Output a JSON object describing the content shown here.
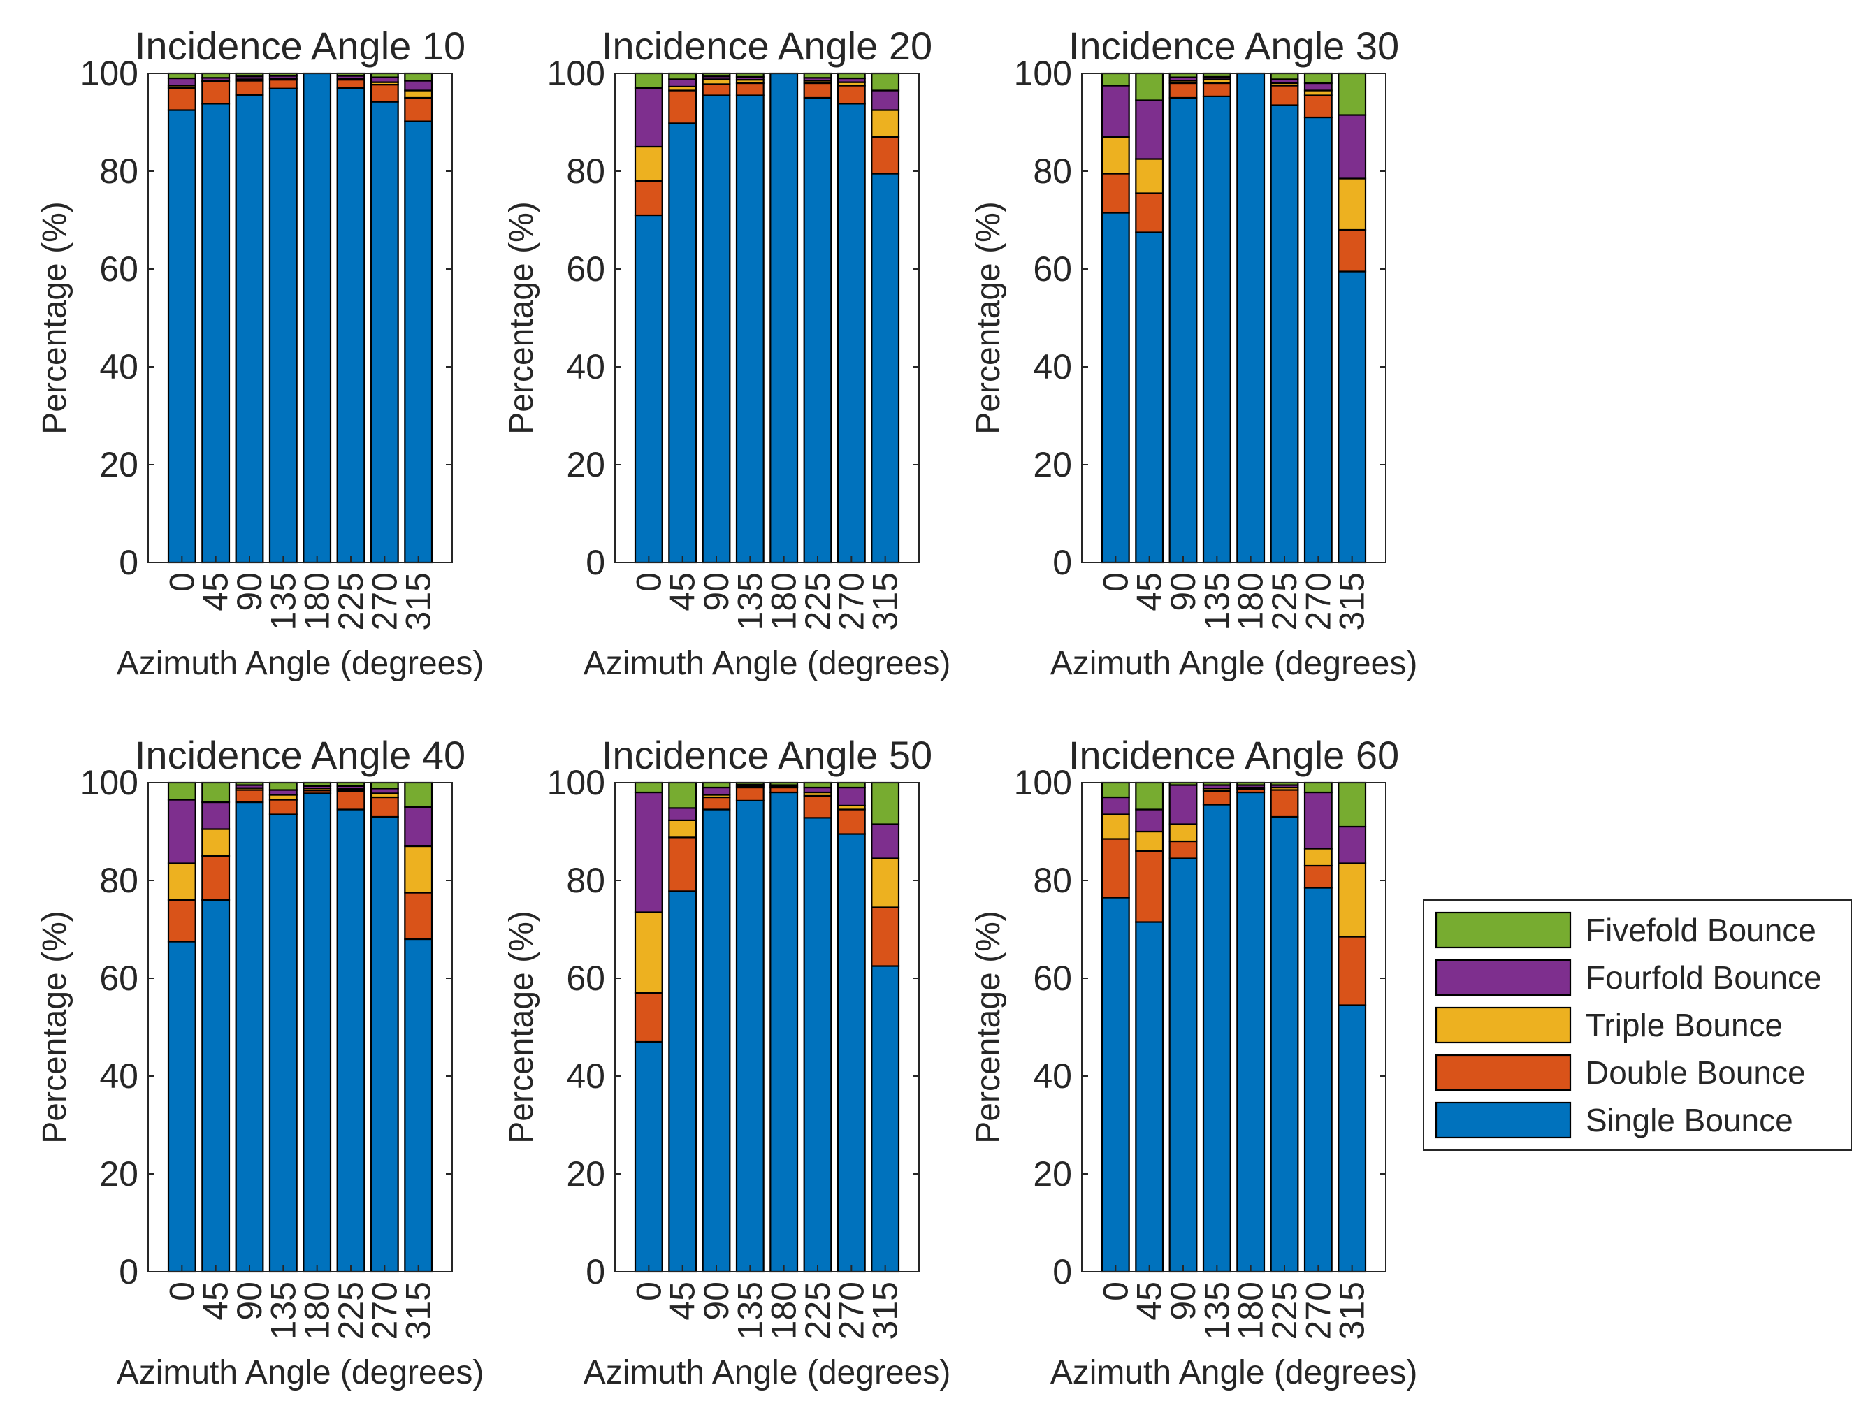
{
  "chart_data": [
    {
      "type": "bar",
      "stacked": true,
      "title": "Incidence Angle 10",
      "xlabel": "Azimuth Angle (degrees)",
      "ylabel": "Percentage (%)",
      "ylim": [
        0,
        100
      ],
      "yticks": [
        "0",
        "20",
        "40",
        "60",
        "80",
        "100"
      ],
      "categories": [
        "0",
        "45",
        "90",
        "135",
        "180",
        "225",
        "270",
        "315"
      ],
      "series": [
        {
          "name": "Single Bounce",
          "values": [
            92.5,
            93.8,
            95.6,
            96.9,
            100,
            97.0,
            94.2,
            90.2
          ]
        },
        {
          "name": "Double Bounce",
          "values": [
            4.5,
            4.5,
            2.9,
            1.8,
            0,
            1.7,
            3.5,
            4.8
          ]
        },
        {
          "name": "Triple Bounce",
          "values": [
            0.5,
            0.2,
            0.3,
            0.3,
            0,
            0.2,
            0.5,
            1.5
          ]
        },
        {
          "name": "Fourfold Bounce",
          "values": [
            1.5,
            0.6,
            0.6,
            0.5,
            0,
            0.6,
            1.0,
            2.0
          ]
        },
        {
          "name": "Fivefold Bounce",
          "values": [
            1.0,
            0.9,
            0.6,
            0.5,
            0,
            0.5,
            0.8,
            1.5
          ]
        }
      ]
    },
    {
      "type": "bar",
      "stacked": true,
      "title": "Incidence Angle 20",
      "xlabel": "Azimuth Angle (degrees)",
      "ylabel": "Percentage (%)",
      "ylim": [
        0,
        100
      ],
      "yticks": [
        "0",
        "20",
        "40",
        "60",
        "80",
        "100"
      ],
      "categories": [
        "0",
        "45",
        "90",
        "135",
        "180",
        "225",
        "270",
        "315"
      ],
      "series": [
        {
          "name": "Single Bounce",
          "values": [
            71.0,
            89.8,
            95.5,
            95.5,
            100,
            95.0,
            93.8,
            79.5
          ]
        },
        {
          "name": "Double Bounce",
          "values": [
            7.0,
            6.7,
            2.3,
            2.5,
            0,
            3.0,
            3.7,
            7.5
          ]
        },
        {
          "name": "Triple Bounce",
          "values": [
            7.0,
            0.8,
            1.0,
            0.7,
            0,
            0.5,
            0.7,
            5.5
          ]
        },
        {
          "name": "Fourfold Bounce",
          "values": [
            12.0,
            1.5,
            0.6,
            0.6,
            0,
            0.6,
            0.8,
            4.0
          ]
        },
        {
          "name": "Fivefold Bounce",
          "values": [
            3.0,
            1.2,
            0.6,
            0.7,
            0,
            0.9,
            1.0,
            3.5
          ]
        }
      ]
    },
    {
      "type": "bar",
      "stacked": true,
      "title": "Incidence Angle 30",
      "xlabel": "Azimuth Angle (degrees)",
      "ylabel": "Percentage (%)",
      "ylim": [
        0,
        100
      ],
      "yticks": [
        "0",
        "20",
        "40",
        "60",
        "80",
        "100"
      ],
      "categories": [
        "0",
        "45",
        "90",
        "135",
        "180",
        "225",
        "270",
        "315"
      ],
      "series": [
        {
          "name": "Single Bounce",
          "values": [
            71.5,
            67.5,
            95.0,
            95.3,
            100,
            93.5,
            91.0,
            59.5
          ]
        },
        {
          "name": "Double Bounce",
          "values": [
            8.0,
            8.0,
            3.0,
            2.7,
            0,
            4.0,
            4.5,
            8.5
          ]
        },
        {
          "name": "Triple Bounce",
          "values": [
            7.5,
            7.0,
            0.5,
            0.8,
            0,
            0.5,
            1.0,
            10.5
          ]
        },
        {
          "name": "Fourfold Bounce",
          "values": [
            10.5,
            12.0,
            0.7,
            0.5,
            0,
            0.8,
            1.5,
            13.0
          ]
        },
        {
          "name": "Fivefold Bounce",
          "values": [
            2.5,
            5.5,
            0.8,
            0.7,
            0,
            1.2,
            2.0,
            8.5
          ]
        }
      ]
    },
    {
      "type": "bar",
      "stacked": true,
      "title": "Incidence Angle 40",
      "xlabel": "Azimuth Angle (degrees)",
      "ylabel": "Percentage (%)",
      "ylim": [
        0,
        100
      ],
      "yticks": [
        "0",
        "20",
        "40",
        "60",
        "80",
        "100"
      ],
      "categories": [
        "0",
        "45",
        "90",
        "135",
        "180",
        "225",
        "270",
        "315"
      ],
      "series": [
        {
          "name": "Single Bounce",
          "values": [
            67.5,
            76.0,
            96.0,
            93.5,
            97.8,
            94.5,
            93.0,
            68.0
          ]
        },
        {
          "name": "Double Bounce",
          "values": [
            8.5,
            9.0,
            2.5,
            3.0,
            0.6,
            3.8,
            4.0,
            9.5
          ]
        },
        {
          "name": "Triple Bounce",
          "values": [
            7.5,
            5.5,
            0.4,
            1.0,
            0.4,
            0.4,
            0.8,
            9.5
          ]
        },
        {
          "name": "Fourfold Bounce",
          "values": [
            13.0,
            5.5,
            0.6,
            1.0,
            0.5,
            0.6,
            1.0,
            8.0
          ]
        },
        {
          "name": "Fivefold Bounce",
          "values": [
            3.5,
            4.0,
            0.5,
            1.5,
            0.7,
            0.7,
            1.2,
            5.0
          ]
        }
      ]
    },
    {
      "type": "bar",
      "stacked": true,
      "title": "Incidence Angle 50",
      "xlabel": "Azimuth Angle (degrees)",
      "ylabel": "Percentage (%)",
      "ylim": [
        0,
        100
      ],
      "yticks": [
        "0",
        "20",
        "40",
        "60",
        "80",
        "100"
      ],
      "categories": [
        "0",
        "45",
        "90",
        "135",
        "180",
        "225",
        "270",
        "315"
      ],
      "series": [
        {
          "name": "Single Bounce",
          "values": [
            47.0,
            77.8,
            94.5,
            96.3,
            98.0,
            92.8,
            89.5,
            62.5
          ]
        },
        {
          "name": "Double Bounce",
          "values": [
            10.0,
            11.0,
            2.5,
            2.7,
            1.0,
            4.5,
            5.0,
            12.0
          ]
        },
        {
          "name": "Triple Bounce",
          "values": [
            16.5,
            3.5,
            0.5,
            0.3,
            0.2,
            0.7,
            0.8,
            10.0
          ]
        },
        {
          "name": "Fourfold Bounce",
          "values": [
            24.5,
            2.5,
            1.5,
            0.3,
            0.3,
            1.0,
            3.7,
            7.0
          ]
        },
        {
          "name": "Fivefold Bounce",
          "values": [
            2.0,
            5.2,
            1.0,
            0.4,
            0.5,
            1.0,
            1.0,
            8.5
          ]
        }
      ]
    },
    {
      "type": "bar",
      "stacked": true,
      "title": "Incidence Angle 60",
      "xlabel": "Azimuth Angle (degrees)",
      "ylabel": "Percentage (%)",
      "ylim": [
        0,
        100
      ],
      "yticks": [
        "0",
        "20",
        "40",
        "60",
        "80",
        "100"
      ],
      "categories": [
        "0",
        "45",
        "90",
        "135",
        "180",
        "225",
        "270",
        "315"
      ],
      "series": [
        {
          "name": "Single Bounce",
          "values": [
            76.5,
            71.5,
            84.5,
            95.5,
            98.0,
            93.0,
            78.5,
            54.5
          ]
        },
        {
          "name": "Double Bounce",
          "values": [
            12.0,
            14.5,
            3.5,
            2.8,
            0.7,
            5.5,
            4.5,
            14.0
          ]
        },
        {
          "name": "Triple Bounce",
          "values": [
            5.0,
            4.0,
            3.5,
            0.5,
            0.3,
            0.5,
            3.5,
            15.0
          ]
        },
        {
          "name": "Fourfold Bounce",
          "values": [
            3.5,
            4.5,
            8.0,
            0.7,
            0.5,
            0.5,
            11.5,
            7.5
          ]
        },
        {
          "name": "Fivefold Bounce",
          "values": [
            3.0,
            5.5,
            0.5,
            0.5,
            0.5,
            0.5,
            2.0,
            9.0
          ]
        }
      ]
    }
  ],
  "legend": {
    "placement": "right",
    "entries": [
      {
        "name": "Fivefold Bounce",
        "color": "#77ac30"
      },
      {
        "name": "Fourfold Bounce",
        "color": "#7e2f8e"
      },
      {
        "name": "Triple Bounce",
        "color": "#edb120"
      },
      {
        "name": "Double Bounce",
        "color": "#d95319"
      },
      {
        "name": "Single Bounce",
        "color": "#0072bd"
      }
    ]
  },
  "colors": {
    "Single Bounce": "#0072bd",
    "Double Bounce": "#d95319",
    "Triple Bounce": "#edb120",
    "Fourfold Bounce": "#7e2f8e",
    "Fivefold Bounce": "#77ac30"
  }
}
